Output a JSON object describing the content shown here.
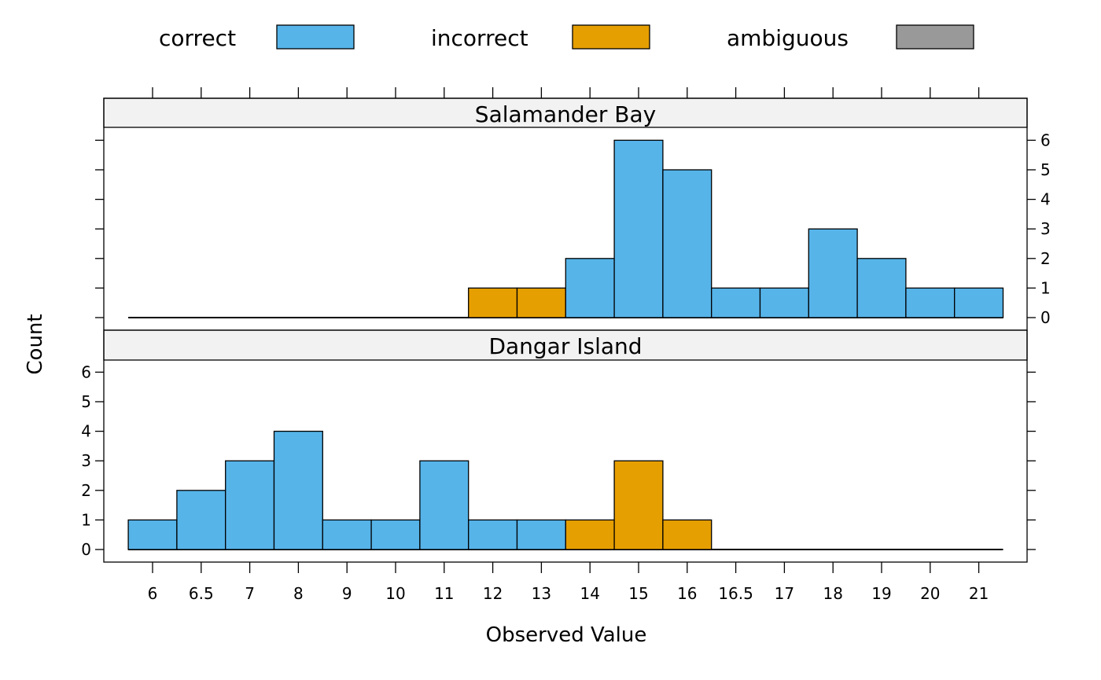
{
  "chart_data": {
    "type": "bar",
    "categories": [
      "6",
      "6.5",
      "7",
      "8",
      "9",
      "10",
      "11",
      "12",
      "13",
      "14",
      "15",
      "16",
      "16.5",
      "17",
      "18",
      "19",
      "20",
      "21"
    ],
    "legend": [
      {
        "label": "correct",
        "color": "#56B4E9"
      },
      {
        "label": "incorrect",
        "color": "#E69F00"
      },
      {
        "label": "ambiguous",
        "color": "#999999"
      }
    ],
    "xlabel": "Observed Value",
    "ylabel": "Count",
    "ylim": [
      0,
      6
    ],
    "yticks": [
      0,
      1,
      2,
      3,
      4,
      5,
      6
    ],
    "panels": [
      {
        "name": "Salamander Bay",
        "bars": [
          {
            "x": "12",
            "value": 1,
            "group": "incorrect"
          },
          {
            "x": "13",
            "value": 1,
            "group": "incorrect"
          },
          {
            "x": "14",
            "value": 2,
            "group": "correct"
          },
          {
            "x": "15",
            "value": 6,
            "group": "correct"
          },
          {
            "x": "16",
            "value": 5,
            "group": "correct"
          },
          {
            "x": "16.5",
            "value": 1,
            "group": "correct"
          },
          {
            "x": "17",
            "value": 1,
            "group": "correct"
          },
          {
            "x": "18",
            "value": 3,
            "group": "correct"
          },
          {
            "x": "19",
            "value": 2,
            "group": "correct"
          },
          {
            "x": "20",
            "value": 1,
            "group": "correct"
          },
          {
            "x": "21",
            "value": 1,
            "group": "correct"
          }
        ]
      },
      {
        "name": "Dangar Island",
        "bars": [
          {
            "x": "6",
            "value": 1,
            "group": "correct"
          },
          {
            "x": "6.5",
            "value": 2,
            "group": "correct"
          },
          {
            "x": "7",
            "value": 3,
            "group": "correct"
          },
          {
            "x": "8",
            "value": 4,
            "group": "correct"
          },
          {
            "x": "9",
            "value": 1,
            "group": "correct"
          },
          {
            "x": "10",
            "value": 1,
            "group": "correct"
          },
          {
            "x": "11",
            "value": 3,
            "group": "correct"
          },
          {
            "x": "12",
            "value": 1,
            "group": "correct"
          },
          {
            "x": "13",
            "value": 1,
            "group": "correct"
          },
          {
            "x": "14",
            "value": 1,
            "group": "incorrect"
          },
          {
            "x": "15",
            "value": 3,
            "group": "incorrect"
          },
          {
            "x": "16",
            "value": 1,
            "group": "incorrect"
          }
        ]
      }
    ]
  }
}
